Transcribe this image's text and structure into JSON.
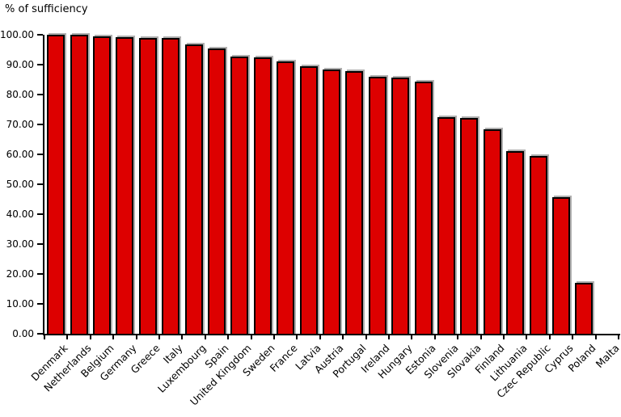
{
  "chart": {
    "title": "% of sufficiency"
  },
  "chart_data": {
    "type": "bar",
    "title": "% of sufficiency",
    "xlabel": "",
    "ylabel": "% of sufficiency",
    "categories": [
      "Denmark",
      "Netherlands",
      "Belgium",
      "Germany",
      "Greece",
      "Italy",
      "Luxembourg",
      "Spain",
      "United Kingdom",
      "Sweden",
      "France",
      "Latvia",
      "Austria",
      "Portugal",
      "Ireland",
      "Hungary",
      "Estonia",
      "Slovenia",
      "Slovakia",
      "Finland",
      "Lithuania",
      "Czec Republic",
      "Cyprus",
      "Poland",
      "Malta"
    ],
    "values": [
      100.0,
      100.0,
      99.5,
      99.2,
      99.0,
      98.8,
      96.8,
      95.5,
      92.7,
      92.4,
      91.0,
      89.5,
      88.4,
      87.8,
      86.0,
      85.6,
      84.3,
      72.5,
      72.2,
      68.4,
      61.2,
      59.5,
      45.8,
      16.9,
      0.0
    ],
    "ylim": [
      0,
      100
    ],
    "ytick_step": 10,
    "ytick_labels": [
      "0.00",
      "10.00",
      "20.00",
      "30.00",
      "40.00",
      "50.00",
      "60.00",
      "70.00",
      "80.00",
      "90.00",
      "100.00"
    ],
    "grid": false,
    "legend_position": "none",
    "x_label_rotation_deg": 45,
    "bar_color": "#dd0000",
    "bar_border_color": "#000000",
    "bar_shadow_color": "#b0b0b0",
    "axis_color": "#000000",
    "text_color": "#000000",
    "background_color": "#ffffff"
  }
}
